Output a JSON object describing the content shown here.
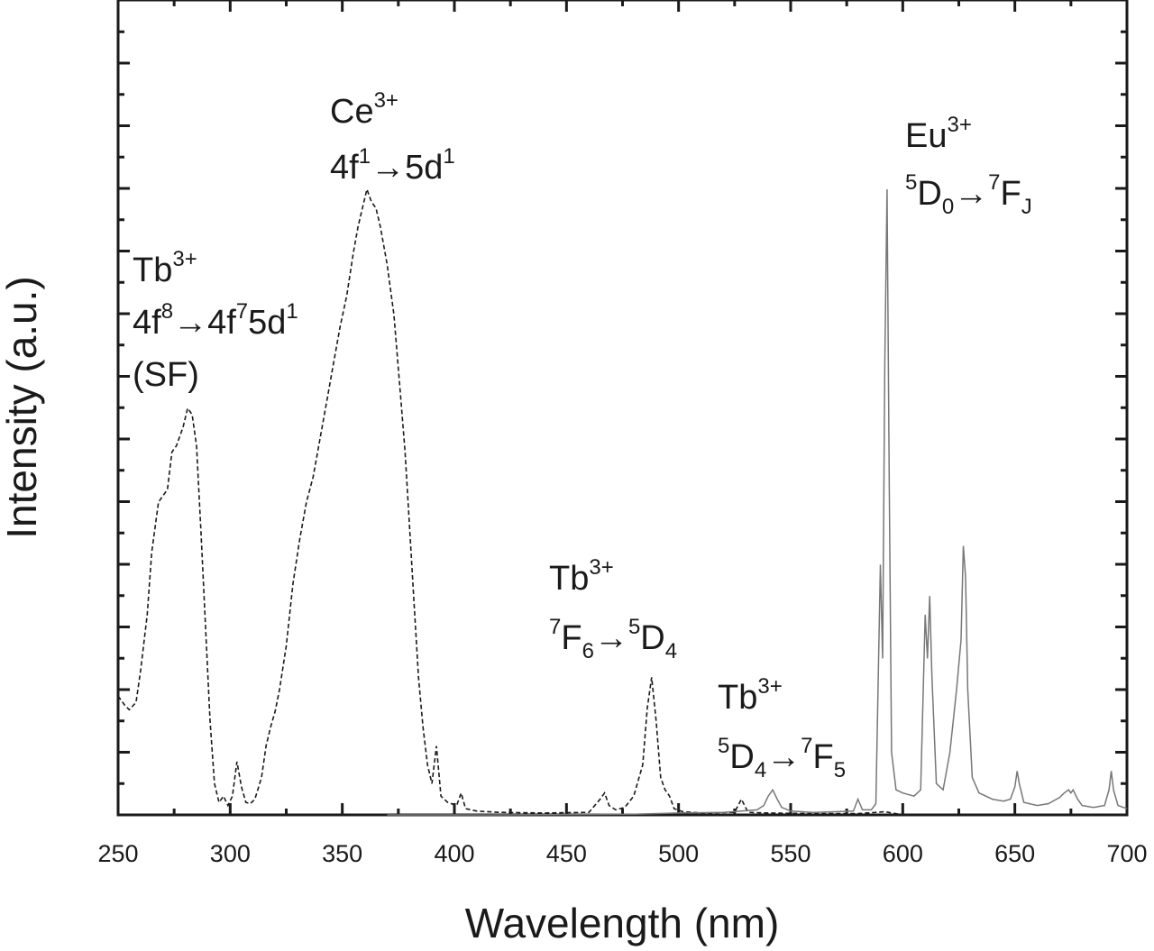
{
  "chart_data": {
    "type": "line",
    "title": "",
    "xlabel": "Wavelength (nm)",
    "ylabel": "Intensity (a.u.)",
    "xlim": [
      250,
      700
    ],
    "ylim": [
      0,
      100
    ],
    "xticks": [
      250,
      300,
      350,
      400,
      450,
      500,
      550,
      600,
      650,
      700
    ],
    "y_tick_labels_shown": false,
    "grid": false,
    "legend": "none",
    "series": [
      {
        "style": "dashed",
        "color": "#1a1a1a",
        "points": [
          [
            250,
            19
          ],
          [
            253,
            17.5
          ],
          [
            255,
            16.8
          ],
          [
            258,
            18
          ],
          [
            260,
            23
          ],
          [
            263,
            32
          ],
          [
            265,
            42
          ],
          [
            268,
            50
          ],
          [
            270,
            51
          ],
          [
            272,
            52
          ],
          [
            274,
            58
          ],
          [
            276,
            59
          ],
          [
            279,
            62
          ],
          [
            281,
            65
          ],
          [
            283,
            64
          ],
          [
            285,
            59
          ],
          [
            287,
            45
          ],
          [
            289,
            30
          ],
          [
            291,
            15
          ],
          [
            293,
            5
          ],
          [
            295,
            2
          ],
          [
            297,
            3
          ],
          [
            299,
            1.5
          ],
          [
            301,
            3
          ],
          [
            303,
            8.5
          ],
          [
            305,
            4.5
          ],
          [
            307,
            2
          ],
          [
            309,
            1.8
          ],
          [
            311,
            2.5
          ],
          [
            314,
            6
          ],
          [
            316,
            11
          ],
          [
            318,
            14
          ],
          [
            320,
            16.5
          ],
          [
            322,
            20
          ],
          [
            325,
            27
          ],
          [
            328,
            37
          ],
          [
            331,
            44
          ],
          [
            334,
            50
          ],
          [
            337,
            54
          ],
          [
            340,
            60
          ],
          [
            343,
            66
          ],
          [
            346,
            72
          ],
          [
            349,
            78
          ],
          [
            352,
            83
          ],
          [
            355,
            90
          ],
          [
            357,
            94
          ],
          [
            359,
            97
          ],
          [
            361,
            100
          ],
          [
            363,
            98
          ],
          [
            365,
            97
          ],
          [
            367,
            94
          ],
          [
            370,
            88
          ],
          [
            373,
            80
          ],
          [
            376,
            67
          ],
          [
            378,
            58
          ],
          [
            380,
            46
          ],
          [
            382,
            34
          ],
          [
            384,
            22
          ],
          [
            386,
            14
          ],
          [
            388,
            8
          ],
          [
            390,
            5
          ],
          [
            392,
            11
          ],
          [
            394,
            3
          ],
          [
            397,
            2
          ],
          [
            401,
            1.5
          ],
          [
            403,
            3.5
          ],
          [
            405,
            1
          ],
          [
            410,
            0.6
          ],
          [
            420,
            0.4
          ],
          [
            440,
            0.3
          ],
          [
            460,
            0.4
          ],
          [
            465,
            2.5
          ],
          [
            467,
            3.5
          ],
          [
            469,
            1.5
          ],
          [
            472,
            0.8
          ],
          [
            476,
            1.2
          ],
          [
            480,
            3
          ],
          [
            484,
            8
          ],
          [
            486,
            17
          ],
          [
            488,
            22
          ],
          [
            490,
            15
          ],
          [
            492,
            6
          ],
          [
            494,
            4
          ],
          [
            496,
            3
          ],
          [
            498,
            1
          ],
          [
            502,
            0.5
          ],
          [
            510,
            0.3
          ],
          [
            525,
            0.4
          ],
          [
            528,
            2.5
          ],
          [
            531,
            0.4
          ],
          [
            540,
            0.3
          ],
          [
            560,
            0.2
          ],
          [
            580,
            0.2
          ],
          [
            592,
            0.5
          ],
          [
            600,
            0
          ]
        ]
      },
      {
        "style": "solid",
        "color": "#777777",
        "points": [
          [
            370,
            0
          ],
          [
            420,
            0
          ],
          [
            480,
            0.1
          ],
          [
            500,
            0.3
          ],
          [
            520,
            0.4
          ],
          [
            535,
            0.8
          ],
          [
            538,
            1.5
          ],
          [
            540,
            3
          ],
          [
            542,
            4
          ],
          [
            544,
            2.5
          ],
          [
            546,
            1.2
          ],
          [
            550,
            0.6
          ],
          [
            560,
            0.4
          ],
          [
            570,
            0.5
          ],
          [
            578,
            0.6
          ],
          [
            580,
            2.5
          ],
          [
            582,
            0.8
          ],
          [
            586,
            0.8
          ],
          [
            588,
            1.8
          ],
          [
            590,
            40
          ],
          [
            591,
            25
          ],
          [
            592,
            72
          ],
          [
            593,
            100
          ],
          [
            594,
            52
          ],
          [
            595,
            10
          ],
          [
            597,
            4
          ],
          [
            600,
            3.5
          ],
          [
            605,
            3
          ],
          [
            608,
            4
          ],
          [
            610,
            32
          ],
          [
            611,
            25
          ],
          [
            612,
            35
          ],
          [
            613,
            22
          ],
          [
            615,
            5
          ],
          [
            618,
            4
          ],
          [
            621,
            10
          ],
          [
            624,
            20
          ],
          [
            626,
            28
          ],
          [
            627,
            43
          ],
          [
            628,
            38
          ],
          [
            629,
            20
          ],
          [
            631,
            6
          ],
          [
            634,
            3.5
          ],
          [
            640,
            2.5
          ],
          [
            645,
            2.2
          ],
          [
            648,
            2.5
          ],
          [
            650,
            4.5
          ],
          [
            651,
            7
          ],
          [
            652,
            5
          ],
          [
            654,
            2
          ],
          [
            660,
            1.5
          ],
          [
            665,
            1.8
          ],
          [
            670,
            2.8
          ],
          [
            672,
            3.5
          ],
          [
            674,
            4
          ],
          [
            675,
            3.5
          ],
          [
            676,
            4
          ],
          [
            678,
            2.5
          ],
          [
            680,
            1.5
          ],
          [
            685,
            1.2
          ],
          [
            690,
            1.5
          ],
          [
            692,
            4
          ],
          [
            693,
            7
          ],
          [
            694,
            4
          ],
          [
            696,
            1.5
          ],
          [
            700,
            1
          ]
        ]
      }
    ],
    "annotations": [
      {
        "lines": [
          {
            "segments": [
              {
                "t": "Tb"
              },
              {
                "t": "3+",
                "sup": true
              }
            ]
          },
          {
            "segments": [
              {
                "t": "4f"
              },
              {
                "t": "8",
                "sup": true
              },
              {
                "t": "→4f"
              },
              {
                "t": "7",
                "sup": true
              },
              {
                "t": "5d"
              },
              {
                "t": "1",
                "sup": true
              }
            ]
          },
          {
            "segments": [
              {
                "t": "(SF)"
              }
            ]
          }
        ]
      },
      {
        "lines": [
          {
            "segments": [
              {
                "t": "Ce"
              },
              {
                "t": "3+",
                "sup": true
              }
            ]
          },
          {
            "segments": [
              {
                "t": "4f"
              },
              {
                "t": "1",
                "sup": true
              },
              {
                "t": "→5d"
              },
              {
                "t": "1",
                "sup": true
              }
            ]
          }
        ]
      },
      {
        "lines": [
          {
            "segments": [
              {
                "t": "Tb"
              },
              {
                "t": "3+",
                "sup": true
              }
            ]
          },
          {
            "segments": [
              {
                "t": "7",
                "sup": true
              },
              {
                "t": "F"
              },
              {
                "t": "6",
                "sub": true
              },
              {
                "t": "→"
              },
              {
                "t": "5",
                "sup": true
              },
              {
                "t": "D"
              },
              {
                "t": "4",
                "sub": true
              }
            ]
          }
        ]
      },
      {
        "lines": [
          {
            "segments": [
              {
                "t": "Tb"
              },
              {
                "t": "3+",
                "sup": true
              }
            ]
          },
          {
            "segments": [
              {
                "t": "5",
                "sup": true
              },
              {
                "t": "D"
              },
              {
                "t": "4",
                "sub": true
              },
              {
                "t": "→"
              },
              {
                "t": "7",
                "sup": true
              },
              {
                "t": "F"
              },
              {
                "t": "5",
                "sub": true
              }
            ]
          }
        ]
      },
      {
        "lines": [
          {
            "segments": [
              {
                "t": "Eu"
              },
              {
                "t": "3+",
                "sup": true
              }
            ]
          },
          {
            "segments": [
              {
                "t": "5",
                "sup": true
              },
              {
                "t": "D"
              },
              {
                "t": "0",
                "sub": true
              },
              {
                "t": "→"
              },
              {
                "t": "7",
                "sup": true
              },
              {
                "t": "F"
              },
              {
                "t": "J",
                "sub": true
              }
            ]
          }
        ]
      }
    ]
  }
}
